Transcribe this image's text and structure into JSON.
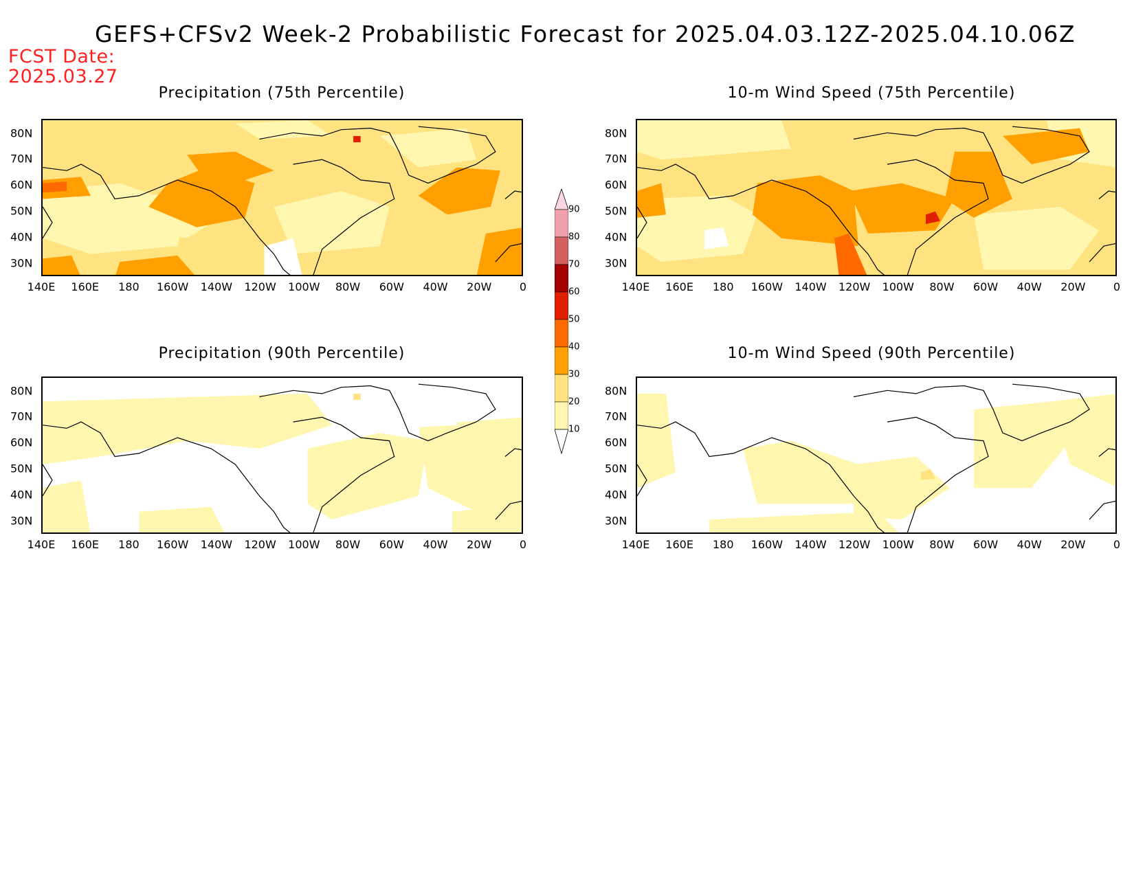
{
  "title": "GEFS+CFSv2 Week-2 Probabilistic Forecast for 2025.04.03.12Z-2025.04.10.06Z",
  "fcst_date_label": "FCST Date:",
  "fcst_date_value": "2025.03.27",
  "panels": [
    {
      "id": "precip75",
      "title": "Precipitation (75th Percentile)"
    },
    {
      "id": "wind75",
      "title": "10-m Wind Speed (75th Percentile)"
    },
    {
      "id": "precip90",
      "title": "Precipitation (90th Percentile)"
    },
    {
      "id": "wind90",
      "title": "10-m Wind Speed (90th Percentile)"
    }
  ],
  "lat_labels": [
    "80N",
    "70N",
    "60N",
    "50N",
    "40N",
    "30N"
  ],
  "lon_labels": [
    "140E",
    "160E",
    "180",
    "160W",
    "140W",
    "120W",
    "100W",
    "80W",
    "60W",
    "40W",
    "20W",
    "0"
  ],
  "colorbar": {
    "levels": [
      "10",
      "20",
      "30",
      "40",
      "50",
      "60",
      "70",
      "80",
      "90"
    ],
    "colors": [
      "#ffffff",
      "#fff6b0",
      "#ffe380",
      "#ffa000",
      "#ff6a00",
      "#e02000",
      "#a50000",
      "#d46060",
      "#f0a0a8",
      "#fbd8e0"
    ]
  },
  "map_colors": {
    "c0": "#ffffff",
    "c1": "#fff6b0",
    "c2": "#ffe380",
    "c3": "#ffa000",
    "c4": "#ff6a00",
    "c5": "#e02000"
  }
}
